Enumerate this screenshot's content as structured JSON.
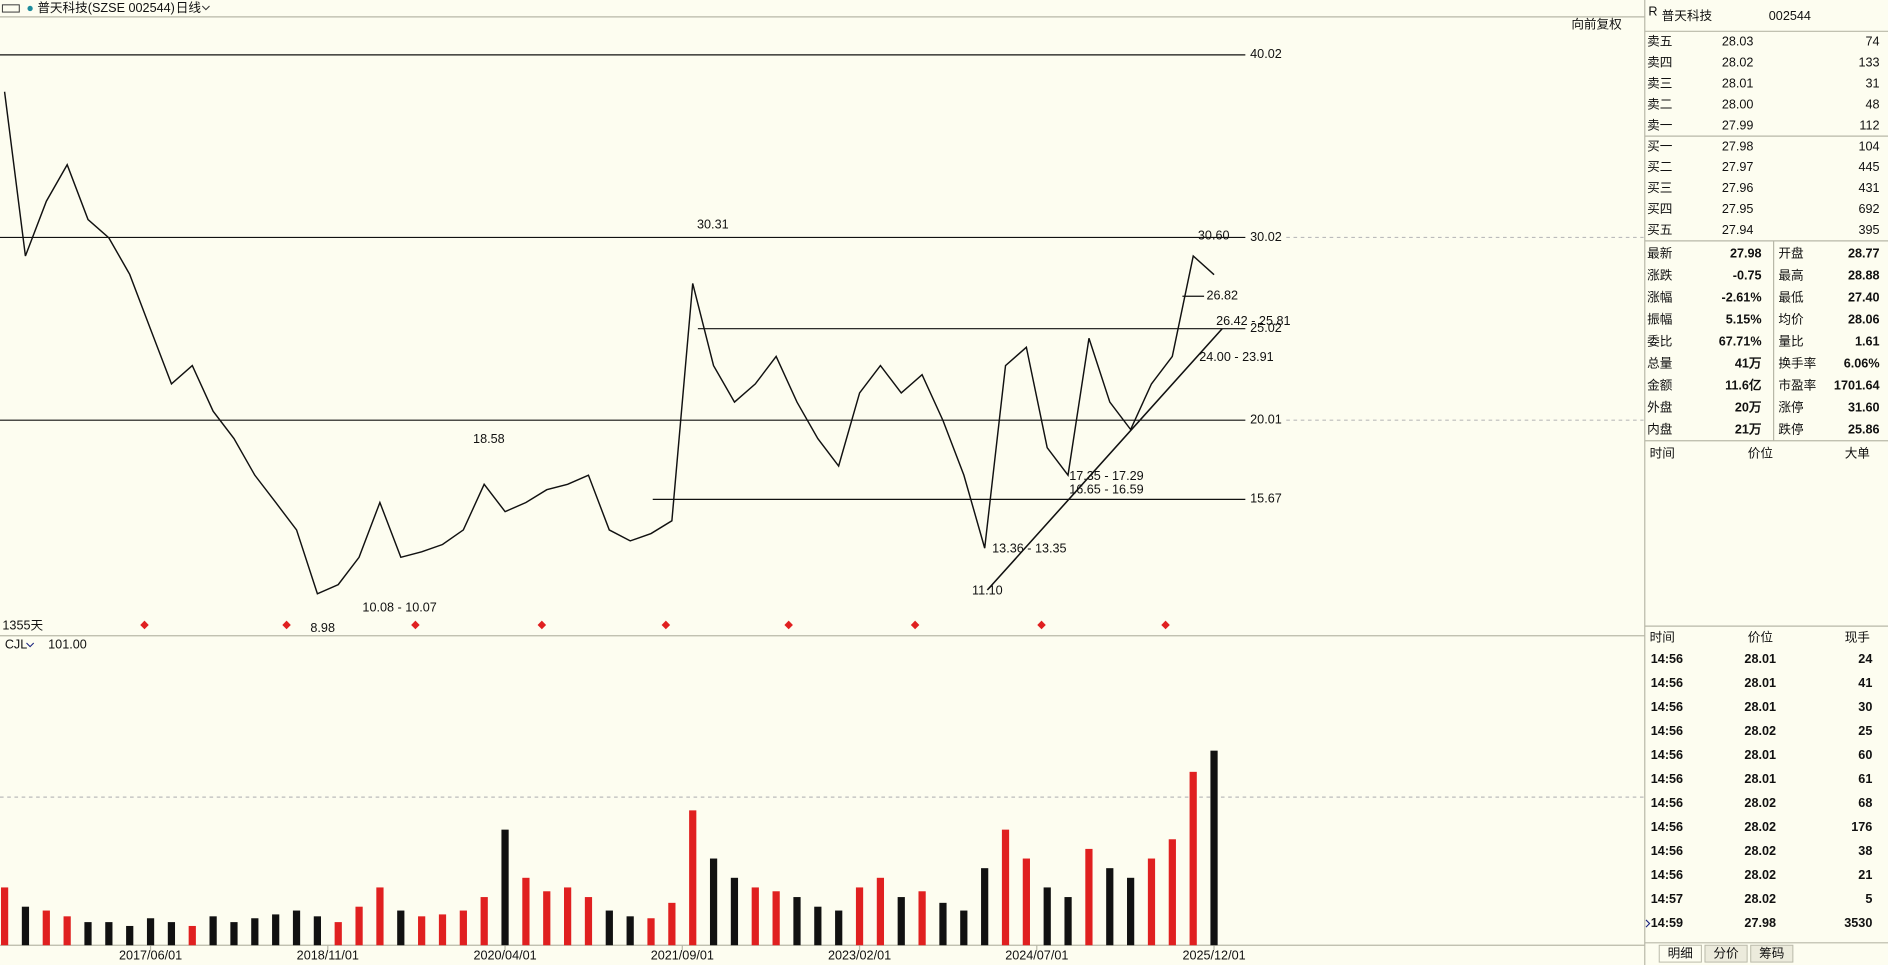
{
  "window": {
    "symbol": "普天科技(SZSE 002544)",
    "period": "日线",
    "adjust": "向前复权"
  },
  "chart_data": [
    {
      "type": "line",
      "period_label": "1355天",
      "x": [
        "2016/04/01",
        "2016/06/01",
        "2016/08/01",
        "2016/10/01",
        "2016/12/01",
        "2017/02/01",
        "2017/04/01",
        "2017/06/01",
        "2017/08/01",
        "2017/10/01",
        "2017/12/01",
        "2018/02/01",
        "2018/04/01",
        "2018/06/01",
        "2018/08/01",
        "2018/10/01",
        "2018/12/01",
        "2019/02/01",
        "2019/04/01",
        "2019/06/01",
        "2019/08/01",
        "2019/10/01",
        "2019/12/01",
        "2020/02/01",
        "2020/04/01",
        "2020/06/01",
        "2020/08/01",
        "2020/10/01",
        "2020/12/01",
        "2021/02/01",
        "2021/04/01",
        "2021/06/01",
        "2021/08/01",
        "2021/10/01",
        "2021/12/01",
        "2022/02/01",
        "2022/04/01",
        "2022/06/01",
        "2022/08/01",
        "2022/10/01",
        "2022/12/01",
        "2023/02/01",
        "2023/04/01",
        "2023/06/01",
        "2023/08/01",
        "2023/10/01",
        "2023/12/01",
        "2024/02/01",
        "2024/04/01",
        "2024/06/01",
        "2024/08/01",
        "2024/10/01",
        "2024/12/01",
        "2025/02/01",
        "2025/04/01",
        "2025/06/01",
        "2025/08/01",
        "2025/10/01",
        "2025/12/01"
      ],
      "values": [
        38,
        29,
        32,
        34,
        31,
        30,
        28,
        25,
        22,
        23,
        20.5,
        19,
        17,
        15.5,
        14,
        10.5,
        11,
        12.5,
        15.5,
        12.5,
        12.8,
        13.2,
        14,
        16.5,
        15,
        15.5,
        16.2,
        16.5,
        17,
        14,
        13.4,
        13.8,
        14.5,
        27.5,
        23,
        21,
        22,
        23.5,
        21,
        19,
        17.5,
        21.5,
        23,
        21.5,
        22.5,
        20,
        17,
        13,
        23,
        24,
        18.5,
        17,
        24.5,
        21,
        19.5,
        22,
        23.5,
        29,
        27.98
      ],
      "color": "#111111",
      "xlim": [
        "2016/03/18",
        "2029/05/07"
      ],
      "ylim": [
        8.2,
        42.1
      ],
      "xticks": [
        "2017/06/01",
        "2018/11/01",
        "2020/04/01",
        "2021/09/01",
        "2023/02/01",
        "2024/07/01",
        "2025/12/01"
      ],
      "levels": [
        {
          "value": 40.02,
          "start": "2016/03/18"
        },
        {
          "value": 30.02,
          "start": "2016/03/18"
        },
        {
          "value": 25.02,
          "start": "2021/10/16"
        },
        {
          "value": 20.01,
          "start": "2016/03/18"
        },
        {
          "value": 15.67,
          "start": "2021/06/06"
        }
      ],
      "annotations": [
        "30.31",
        "18.58",
        "8.98",
        "10.08 - 10.07",
        "11.10",
        "13.36 - 13.35",
        "16.65 - 16.59",
        "17.35 - 17.29",
        "24.00 - 23.91",
        "26.42 - 25.81",
        "26.82",
        "30.60"
      ]
    },
    {
      "type": "bar",
      "title": "CJL",
      "subtitle": "101.00",
      "up_color": "#e02020",
      "down_color": "#111111",
      "values": [
        30,
        20,
        18,
        15,
        12,
        12,
        10,
        14,
        12,
        10,
        15,
        12,
        14,
        16,
        18,
        15,
        12,
        20,
        30,
        18,
        15,
        16,
        18,
        25,
        60,
        35,
        28,
        30,
        25,
        18,
        15,
        14,
        22,
        70,
        45,
        35,
        30,
        28,
        25,
        20,
        18,
        30,
        35,
        25,
        28,
        22,
        18,
        40,
        60,
        45,
        30,
        25,
        50,
        40,
        35,
        45,
        55,
        90,
        101
      ],
      "ylim": [
        0,
        150
      ]
    }
  ],
  "quote_panel": {
    "flag": "R",
    "name": "普天科技",
    "code": "002544",
    "book": [
      {
        "label": "卖五",
        "price": "28.03",
        "volume": "74"
      },
      {
        "label": "卖四",
        "price": "28.02",
        "volume": "133"
      },
      {
        "label": "卖三",
        "price": "28.01",
        "volume": "31"
      },
      {
        "label": "卖二",
        "price": "28.00",
        "volume": "48"
      },
      {
        "label": "卖一",
        "price": "27.99",
        "volume": "112"
      },
      {
        "label": "买一",
        "price": "27.98",
        "volume": "104"
      },
      {
        "label": "买二",
        "price": "27.97",
        "volume": "445"
      },
      {
        "label": "买三",
        "price": "27.96",
        "volume": "431"
      },
      {
        "label": "买四",
        "price": "27.95",
        "volume": "692"
      },
      {
        "label": "买五",
        "price": "27.94",
        "volume": "395"
      }
    ],
    "stats": [
      [
        {
          "label": "最新",
          "value": "27.98",
          "color": "#1e8c9c"
        },
        {
          "label": "开盘",
          "value": "28.77",
          "color": "#e02020"
        }
      ],
      [
        {
          "label": "涨跌",
          "value": "-0.75",
          "color": "#1e8c9c"
        },
        {
          "label": "最高",
          "value": "28.88",
          "color": "#e02020"
        }
      ],
      [
        {
          "label": "涨幅",
          "value": "-2.61%",
          "color": "#1e8c9c"
        },
        {
          "label": "最低",
          "value": "27.40",
          "color": "#1e8c9c"
        }
      ],
      [
        {
          "label": "振幅",
          "value": "5.15%",
          "color": "#1e8c9c"
        },
        {
          "label": "均价",
          "value": "28.06",
          "color": "#1e8c9c"
        }
      ],
      [
        {
          "label": "委比",
          "value": "67.71%",
          "color": "#1e8c9c"
        },
        {
          "label": "量比",
          "value": "1.61",
          "color": "#1e8c9c"
        }
      ],
      [
        {
          "label": "总量",
          "value": "41万",
          "color": "#1e8c9c"
        },
        {
          "label": "换手率",
          "value": "6.06%",
          "color": "#e02020"
        }
      ],
      [
        {
          "label": "金额",
          "value": "11.6亿",
          "color": "#e02020"
        },
        {
          "label": "市盈率",
          "value": "1701.64",
          "color": "#1e8c9c"
        }
      ],
      [
        {
          "label": "外盘",
          "value": "20万",
          "color": "#e02020"
        },
        {
          "label": "涨停",
          "value": "31.60",
          "color": "#e02020"
        }
      ],
      [
        {
          "label": "内盘",
          "value": "21万",
          "color": "#1e8c9c"
        },
        {
          "label": "跌停",
          "value": "25.86",
          "color": "#1e8c9c"
        }
      ]
    ],
    "big_orders_header": [
      "时间",
      "价位",
      "大单"
    ],
    "trades_header": [
      "时间",
      "价位",
      "现手"
    ],
    "trades": [
      {
        "time": "14:56",
        "price": "28.01",
        "volume": "24",
        "color": "#1e8c9c"
      },
      {
        "time": "14:56",
        "price": "28.01",
        "volume": "41",
        "color": "#1e8c9c"
      },
      {
        "time": "14:56",
        "price": "28.01",
        "volume": "30",
        "color": "#e02020"
      },
      {
        "time": "14:56",
        "price": "28.02",
        "volume": "25",
        "color": "#e02020"
      },
      {
        "time": "14:56",
        "price": "28.01",
        "volume": "60",
        "color": "#1e8c9c"
      },
      {
        "time": "14:56",
        "price": "28.01",
        "volume": "61",
        "color": "#1e8c9c"
      },
      {
        "time": "14:56",
        "price": "28.02",
        "volume": "68",
        "color": "#e02020"
      },
      {
        "time": "14:56",
        "price": "28.02",
        "volume": "176",
        "color": "#e02020"
      },
      {
        "time": "14:56",
        "price": "28.02",
        "volume": "38",
        "color": "#1e8c9c"
      },
      {
        "time": "14:56",
        "price": "28.02",
        "volume": "21",
        "color": "#1e8c9c"
      },
      {
        "time": "14:57",
        "price": "28.02",
        "volume": "5",
        "color": "#1e8c9c"
      },
      {
        "time": "14:59",
        "price": "27.98",
        "volume": "3530",
        "color": "#e02020"
      }
    ],
    "tabs": [
      "明细",
      "分价",
      "筹码"
    ]
  }
}
